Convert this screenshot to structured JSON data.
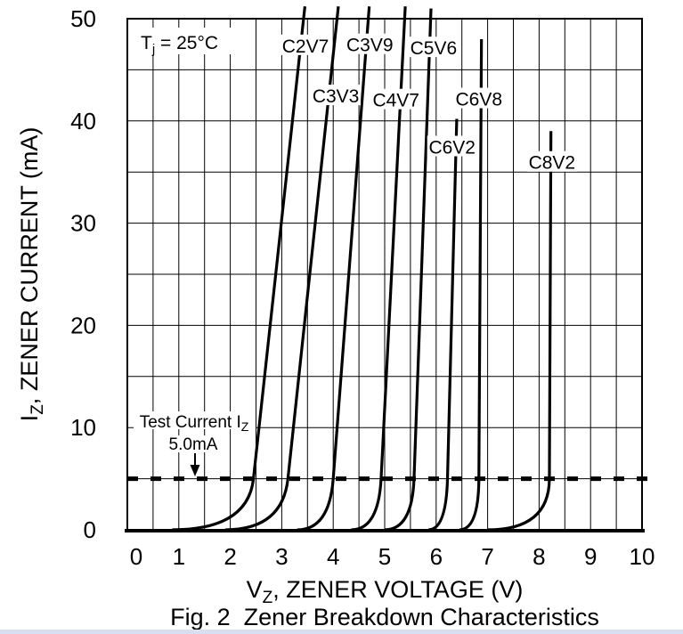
{
  "page": {
    "background": "#ffffff",
    "bottom_edge_color": "#d7dff0",
    "line_color": "#000000"
  },
  "chart_data": {
    "type": "line",
    "title": "Fig. 2  Zener Breakdown Characteristics",
    "xlabel": {
      "pre": "V",
      "sub": "Z",
      "post": ", ZENER VOLTAGE (V)"
    },
    "ylabel": {
      "pre": "I",
      "sub": "Z",
      "post": ", ZENER CURRENT (mA)"
    },
    "xlim": [
      0,
      10
    ],
    "ylim": [
      0,
      50
    ],
    "x_ticks": [
      0,
      1,
      2,
      3,
      4,
      5,
      6,
      7,
      8,
      9,
      10
    ],
    "y_ticks": [
      0,
      10,
      20,
      30,
      40,
      50
    ],
    "x_minor_step": 0.5,
    "y_grid_step": 5,
    "grid": "on",
    "legend_position": "none",
    "annotations": {
      "temperature": {
        "pre": "T",
        "sub": "j",
        "post": " = 25°C"
      },
      "test_current": {
        "line1_pre": "Test Current I",
        "line1_sub": "Z",
        "line2": "5.0mA",
        "value_ma": 5
      }
    },
    "series": [
      {
        "name": "C2V7",
        "points": [
          [
            0.87,
            0
          ],
          [
            2.45,
            5
          ],
          [
            3.45,
            51.2
          ]
        ],
        "label": {
          "v": 3.46,
          "i": 47.4
        }
      },
      {
        "name": "C3V3",
        "points": [
          [
            1.9,
            0
          ],
          [
            3.12,
            5
          ],
          [
            4.1,
            51.2
          ]
        ],
        "label": {
          "v": 4.05,
          "i": 42.5
        }
      },
      {
        "name": "C3V9",
        "points": [
          [
            3.3,
            0
          ],
          [
            4.0,
            5
          ],
          [
            4.7,
            51.2
          ]
        ],
        "label": {
          "v": 4.71,
          "i": 47.5
        }
      },
      {
        "name": "C4V7",
        "points": [
          [
            4.35,
            0
          ],
          [
            4.93,
            5
          ],
          [
            5.4,
            51.2
          ]
        ],
        "label": {
          "v": 5.22,
          "i": 42.1
        }
      },
      {
        "name": "C5V6",
        "points": [
          [
            5.0,
            0
          ],
          [
            5.57,
            5
          ],
          [
            5.9,
            51.0
          ]
        ],
        "label": {
          "v": 5.95,
          "i": 47.2
        }
      },
      {
        "name": "C6V2",
        "points": [
          [
            5.85,
            0
          ],
          [
            6.22,
            5
          ],
          [
            6.4,
            40.2
          ]
        ],
        "label": {
          "v": 6.31,
          "i": 37.5
        }
      },
      {
        "name": "C6V8",
        "points": [
          [
            6.45,
            0
          ],
          [
            6.83,
            5
          ],
          [
            6.88,
            48.0
          ]
        ],
        "label": {
          "v": 6.83,
          "i": 42.2
        }
      },
      {
        "name": "C8V2",
        "points": [
          [
            7.0,
            0
          ],
          [
            8.2,
            5
          ],
          [
            8.23,
            39.0
          ]
        ],
        "label": {
          "v": 8.25,
          "i": 36.0
        }
      }
    ]
  }
}
